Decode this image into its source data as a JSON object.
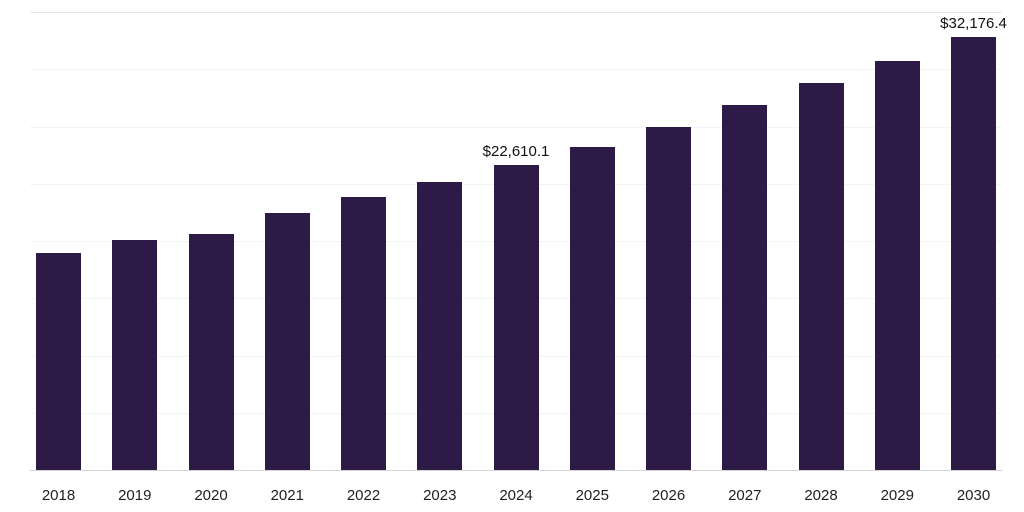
{
  "chart_data": {
    "type": "bar",
    "title": "",
    "xlabel": "",
    "ylabel": "",
    "categories": [
      "2018",
      "2019",
      "2020",
      "2021",
      "2022",
      "2023",
      "2024",
      "2025",
      "2026",
      "2027",
      "2028",
      "2029",
      "2030"
    ],
    "values": [
      16100,
      17100,
      17500,
      19100,
      20300,
      21400,
      22610.1,
      24000,
      25500,
      27100,
      28700,
      30400,
      32176.4
    ],
    "value_labels": {
      "2024": "$22,610.1",
      "2030": "$32,176.4"
    },
    "bar_color": "#2e1a47",
    "ylim": [
      0,
      34000
    ],
    "grid": true,
    "gridline_divisions": 8,
    "legend_position": "none"
  }
}
